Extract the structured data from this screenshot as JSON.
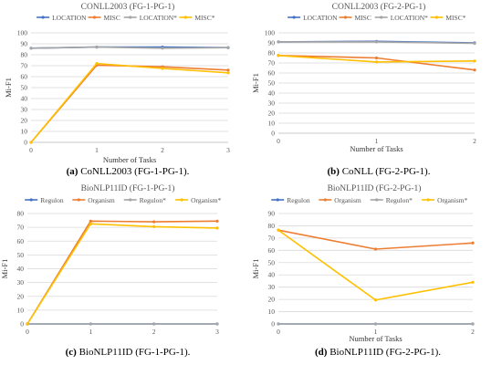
{
  "series_colors": {
    "LOCATION": "#4472c4",
    "MISC": "#ed7d31",
    "LOCATION*": "#a5a5a5",
    "MISC*": "#ffc000",
    "Regulon": "#4472c4",
    "Organism": "#ed7d31",
    "Regulon*": "#a5a5a5",
    "Organism*": "#ffc000"
  },
  "chart_data": [
    {
      "type": "line",
      "title": "CONLL2003 (FG-1-PG-1)",
      "caption_label": "(a)",
      "caption_text": "CoNLL2003 (FG-1-PG-1).",
      "xlabel": "Number of Tasks",
      "ylabel": "Mi-F1",
      "x": [
        0,
        1,
        2,
        3
      ],
      "ylim": [
        0,
        100
      ],
      "ytick_step": 10,
      "show_xlabel": true,
      "legend": "top",
      "series": [
        {
          "name": "LOCATION",
          "values": [
            86,
            87,
            87,
            86.5
          ]
        },
        {
          "name": "MISC",
          "values": [
            0,
            70.5,
            69,
            66
          ]
        },
        {
          "name": "LOCATION*",
          "values": [
            86,
            87,
            86,
            86.5
          ]
        },
        {
          "name": "MISC*",
          "values": [
            0,
            72,
            67.5,
            63.5
          ]
        }
      ]
    },
    {
      "type": "line",
      "title": "CONLL2003 (FG-2-PG-1)",
      "caption_label": "(b)",
      "caption_text": "CoNLL (FG-2-PG-1).",
      "xlabel": "Number of Tasks",
      "ylabel": "Mi-F1",
      "x": [
        0,
        1,
        2
      ],
      "ylim": [
        0,
        100
      ],
      "ytick_step": 10,
      "show_xlabel": true,
      "legend": "top",
      "series": [
        {
          "name": "LOCATION",
          "values": [
            91,
            91.5,
            90
          ]
        },
        {
          "name": "MISC",
          "values": [
            77.5,
            75,
            63
          ]
        },
        {
          "name": "LOCATION*",
          "values": [
            91,
            91,
            89.5
          ]
        },
        {
          "name": "MISC*",
          "values": [
            77.5,
            71,
            72
          ]
        }
      ]
    },
    {
      "type": "line",
      "title": "BioNLP11ID (FG-1-PG-1)",
      "caption_label": "(c)",
      "caption_text": "BioNLP11ID (FG-1-PG-1).",
      "xlabel": "",
      "ylabel": "Mi-F1",
      "x": [
        0,
        1,
        2,
        3
      ],
      "ylim": [
        0,
        80
      ],
      "ytick_step": 10,
      "show_xlabel": false,
      "legend": "top",
      "series": [
        {
          "name": "Regulon",
          "values": [
            0,
            0,
            0,
            0
          ]
        },
        {
          "name": "Organism",
          "values": [
            0,
            74.5,
            74,
            74.5
          ]
        },
        {
          "name": "Regulon*",
          "values": [
            0,
            0,
            0,
            0
          ]
        },
        {
          "name": "Organism*",
          "values": [
            0,
            72.5,
            70.5,
            69.5
          ]
        }
      ]
    },
    {
      "type": "line",
      "title": "BioNLP11ID (FG-2-PG-1)",
      "caption_label": "(d)",
      "caption_text": "BioNLP11ID (FG-2-PG-1).",
      "xlabel": "Number of Tasks",
      "ylabel": "Mi-F1",
      "x": [
        0,
        1,
        2
      ],
      "ylim": [
        0,
        90
      ],
      "ytick_step": 10,
      "show_xlabel": true,
      "legend": "top",
      "series": [
        {
          "name": "Regulon",
          "values": [
            0,
            0,
            0
          ]
        },
        {
          "name": "Organism",
          "values": [
            76.5,
            61,
            66
          ]
        },
        {
          "name": "Regulon*",
          "values": [
            0,
            0,
            0
          ]
        },
        {
          "name": "Organism*",
          "values": [
            76.5,
            19.5,
            34
          ]
        }
      ]
    }
  ]
}
